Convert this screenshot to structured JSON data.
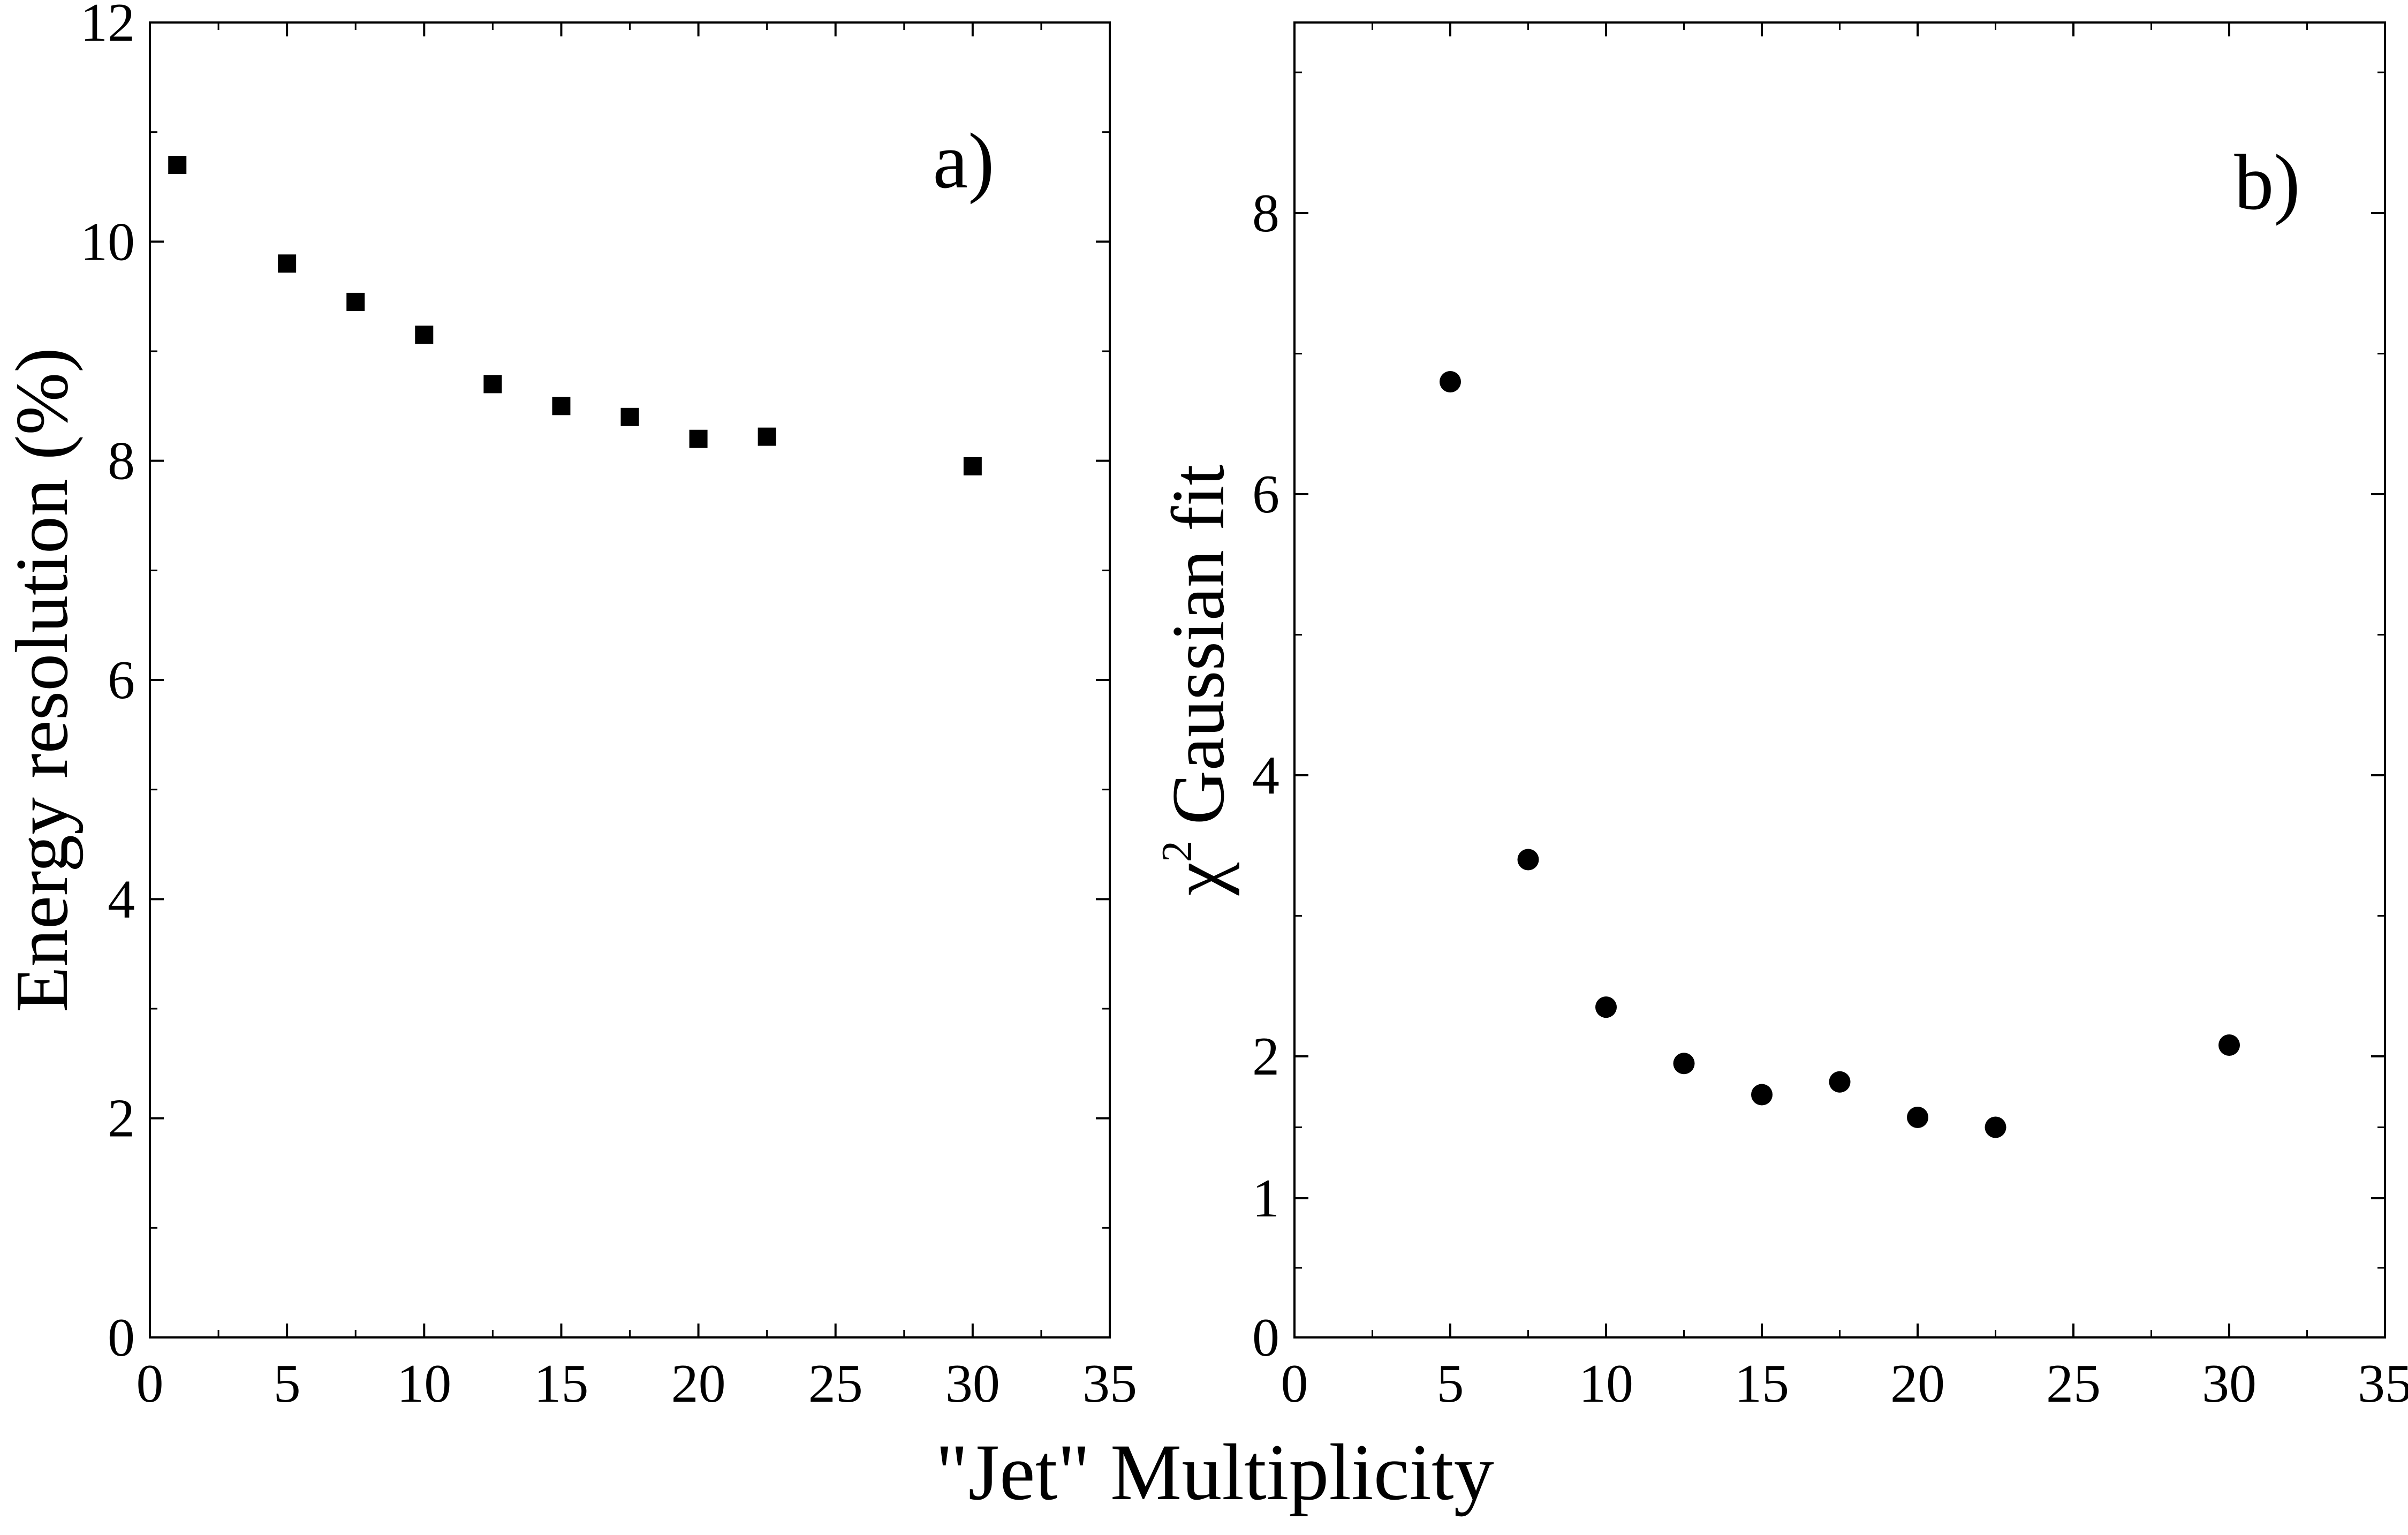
{
  "shared_xlabel": "\"Jet\" Multiplicity",
  "chart_data": [
    {
      "type": "scatter",
      "panel_label": "a)",
      "title": "",
      "xlabel": "",
      "ylabel": "Energy resolution (%)",
      "xlim": [
        0,
        35
      ],
      "ylim": [
        0,
        12
      ],
      "x_ticks": [
        0,
        5,
        10,
        15,
        20,
        25,
        30,
        35
      ],
      "y_ticks": [
        0,
        2,
        4,
        6,
        8,
        10,
        12
      ],
      "y_scale": "linear",
      "marker": "square",
      "grid": false,
      "legend": "none",
      "series": [
        {
          "x": [
            1,
            5,
            7.5,
            10,
            12.5,
            15,
            17.5,
            20,
            22.5,
            30
          ],
          "y": [
            10.7,
            9.8,
            9.45,
            9.15,
            8.7,
            8.5,
            8.4,
            8.2,
            8.22,
            7.95
          ]
        }
      ]
    },
    {
      "type": "scatter",
      "panel_label": "b)",
      "title": "",
      "xlabel": "",
      "ylabel_symbol": "χ",
      "ylabel_superscript": "2",
      "ylabel_text": "Gaussian fit",
      "xlim": [
        0,
        35
      ],
      "ylim": [
        0,
        9.4
      ],
      "x_ticks": [
        0,
        5,
        10,
        15,
        20,
        25,
        30,
        35
      ],
      "y_ticks": [
        0,
        1,
        2,
        4,
        6,
        8
      ],
      "y_minor_ticks": [
        0.5,
        1.5,
        3,
        5,
        7,
        9
      ],
      "y_scale": "non-linear (square-root-like)",
      "marker": "circle",
      "grid": false,
      "legend": "none",
      "series": [
        {
          "x": [
            5,
            7.5,
            10,
            12.5,
            15,
            17.5,
            20,
            22.5,
            30
          ],
          "y": [
            6.8,
            3.4,
            2.35,
            1.95,
            1.73,
            1.82,
            1.57,
            1.5,
            2.08
          ]
        }
      ]
    }
  ]
}
